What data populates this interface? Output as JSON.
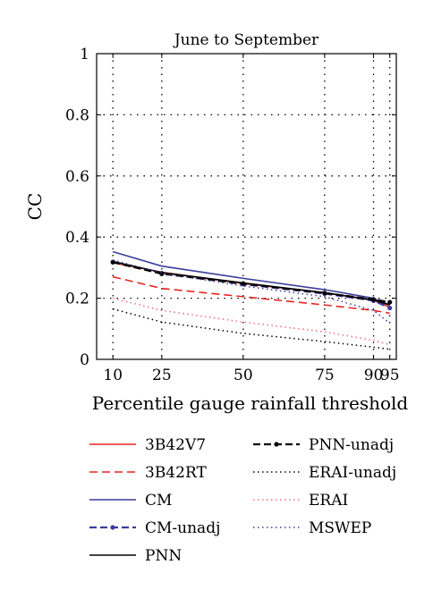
{
  "chart_data": {
    "type": "line",
    "title": "June to September",
    "xlabel": "Percentile gauge rainfall threshold",
    "ylabel": "CC",
    "x": [
      10,
      25,
      50,
      75,
      90,
      95
    ],
    "xticks": [
      "10",
      "25",
      "50",
      "75",
      "90",
      "95"
    ],
    "xlim": [
      5,
      97
    ],
    "ylim": [
      0,
      1
    ],
    "yticks": [
      "0",
      "0.2",
      "0.4",
      "0.6",
      "0.8",
      "1"
    ],
    "grid": true,
    "legend_position": "below plot, two columns",
    "series": [
      {
        "name": "3B42V7",
        "color": "#e8231f",
        "style": "solid",
        "values": [
          0.316,
          0.285,
          0.248,
          0.218,
          0.193,
          0.171
        ]
      },
      {
        "name": "3B42RT",
        "color": "#e8231f",
        "style": "dashed",
        "values": [
          0.27,
          0.232,
          0.205,
          0.178,
          0.16,
          0.151
        ]
      },
      {
        "name": "CM",
        "color": "#3b3d9b",
        "style": "solid",
        "values": [
          0.352,
          0.305,
          0.265,
          0.228,
          0.2,
          0.178
        ]
      },
      {
        "name": "CM-unadj",
        "color": "#3b3d9b",
        "style": "dashdot",
        "values": [
          0.318,
          0.282,
          0.246,
          0.215,
          0.192,
          0.168
        ]
      },
      {
        "name": "PNN",
        "color": "#000000",
        "style": "solid",
        "values": [
          0.32,
          0.284,
          0.25,
          0.218,
          0.194,
          0.178
        ]
      },
      {
        "name": "PNN-unadj",
        "color": "#000000",
        "style": "dashdot",
        "values": [
          0.318,
          0.28,
          0.248,
          0.217,
          0.196,
          0.187
        ]
      },
      {
        "name": "ERAI-unadj",
        "color": "#000000",
        "style": "dotted",
        "values": [
          0.165,
          0.122,
          0.085,
          0.058,
          0.04,
          0.033
        ]
      },
      {
        "name": "ERAI",
        "color": "#f06b7a",
        "style": "dotted",
        "values": [
          0.2,
          0.16,
          0.122,
          0.09,
          0.062,
          0.048
        ]
      },
      {
        "name": "MSWEP",
        "color": "#3b3d9b",
        "style": "dotted",
        "values": [
          0.325,
          0.282,
          0.24,
          0.205,
          0.16,
          0.118
        ]
      }
    ],
    "legend_order": [
      0,
      5,
      1,
      6,
      2,
      7,
      3,
      8,
      4
    ]
  }
}
